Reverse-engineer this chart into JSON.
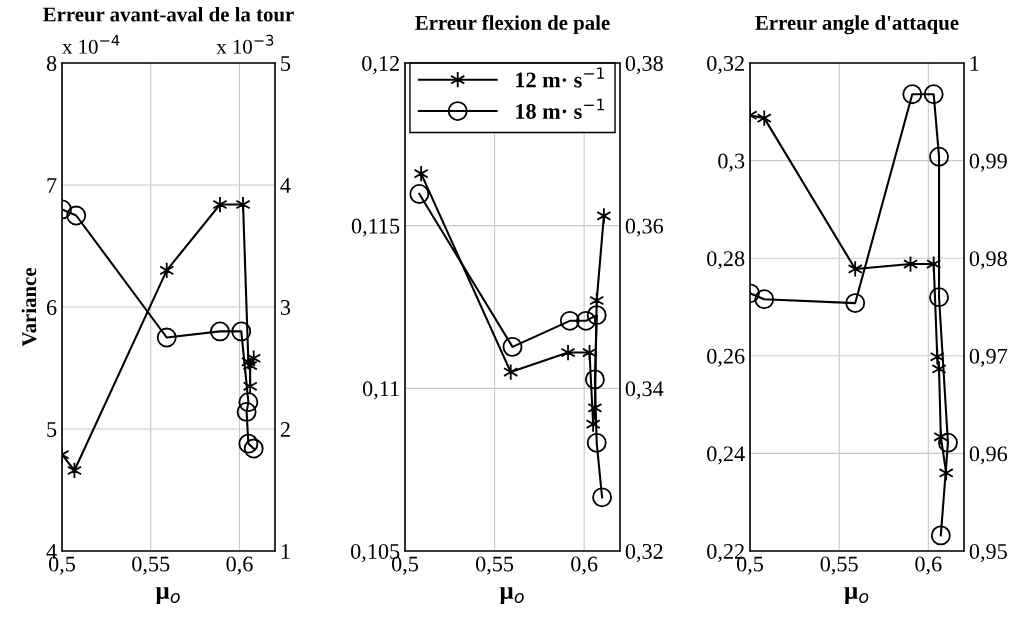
{
  "chart_data": [
    {
      "type": "line",
      "title": "Erreur avant-aval de la tour",
      "xlabel": "μ$_{o}$",
      "ylabel": "Variance",
      "annotations": [
        "x 10$^{−4}$",
        "x 10$^{−3}$"
      ],
      "xlim": [
        0.5,
        0.62
      ],
      "xticks": [
        {
          "value": 0.5,
          "label": "0,5"
        },
        {
          "value": 0.55,
          "label": "0,55"
        },
        {
          "value": 0.6,
          "label": "0,6"
        }
      ],
      "ylim": [
        4,
        8
      ],
      "yticks": [
        4,
        5,
        6,
        7,
        8
      ],
      "y2lim": [
        1,
        5
      ],
      "y2ticks": [
        1,
        2,
        3,
        4,
        5
      ],
      "grid": true,
      "series": [
        {
          "color": "#000000",
          "marker": "cross",
          "x": [
            0.5,
            0.507,
            0.559,
            0.589,
            0.602,
            0.605,
            0.608,
            0.606,
            0.606
          ],
          "values": [
            4.79,
            4.66,
            6.3,
            6.84,
            6.84,
            5.55,
            5.58,
            5.52,
            5.35
          ]
        },
        {
          "color": "#000000",
          "marker": "circle",
          "axis": "y2",
          "x": [
            0.5,
            0.508,
            0.559,
            0.589,
            0.601,
            0.605,
            0.604,
            0.605,
            0.608
          ],
          "values": [
            3.8,
            3.75,
            2.75,
            2.8,
            2.8,
            2.22,
            2.14,
            1.88,
            1.84
          ]
        }
      ]
    },
    {
      "type": "line",
      "title": "Erreur flexion de pale",
      "xlabel": "μ$_{o}$",
      "legend": "top",
      "xlim": [
        0.5,
        0.62
      ],
      "xticks": [
        {
          "value": 0.5,
          "label": "0,5"
        },
        {
          "value": 0.55,
          "label": "0,55"
        },
        {
          "value": 0.6,
          "label": "0,6"
        }
      ],
      "ylim": [
        0.105,
        0.12
      ],
      "yticks": [
        {
          "value": 0.105,
          "label": "0,105"
        },
        {
          "value": 0.11,
          "label": "0,11"
        },
        {
          "value": 0.115,
          "label": "0,115"
        },
        {
          "value": 0.12,
          "label": "0,12"
        }
      ],
      "y2lim": [
        0.32,
        0.38
      ],
      "y2ticks": [
        {
          "value": 0.32,
          "label": "0,32"
        },
        {
          "value": 0.34,
          "label": "0,34"
        },
        {
          "value": 0.36,
          "label": "0,36"
        },
        {
          "value": 0.38,
          "label": "0,38"
        }
      ],
      "grid": true,
      "series": [
        {
          "name": "12 m· s$^{−1}$",
          "color": "#000000",
          "marker": "cross",
          "x": [
            0.509,
            0.559,
            0.591,
            0.603,
            0.605,
            0.606,
            0.607,
            0.611
          ],
          "values": [
            0.1166,
            0.1105,
            0.1111,
            0.1111,
            0.1089,
            0.1094,
            0.1127,
            0.1153
          ]
        },
        {
          "name": "18 m· s$^{−1}$",
          "color": "#000000",
          "marker": "circle",
          "axis": "y2",
          "x": [
            0.508,
            0.56,
            0.592,
            0.601,
            0.607,
            0.606,
            0.607,
            0.61
          ],
          "values": [
            0.3639,
            0.3451,
            0.3483,
            0.3483,
            0.349,
            0.3411,
            0.3333,
            0.3266
          ]
        }
      ]
    },
    {
      "type": "line",
      "title": "Erreur angle d'attaque",
      "xlabel": "μ$_{o}$",
      "xlim": [
        0.5,
        0.62
      ],
      "xticks": [
        {
          "value": 0.5,
          "label": "0,5"
        },
        {
          "value": 0.55,
          "label": "0,55"
        },
        {
          "value": 0.6,
          "label": "0,6"
        }
      ],
      "ylim": [
        0.22,
        0.32
      ],
      "yticks": [
        {
          "value": 0.22,
          "label": "0,22"
        },
        {
          "value": 0.24,
          "label": "0,24"
        },
        {
          "value": 0.26,
          "label": "0,26"
        },
        {
          "value": 0.28,
          "label": "0,28"
        },
        {
          "value": 0.3,
          "label": "0,3"
        },
        {
          "value": 0.32,
          "label": "0,32"
        }
      ],
      "y2lim": [
        0.95,
        1
      ],
      "y2ticks": [
        {
          "value": 0.95,
          "label": "0,95"
        },
        {
          "value": 0.96,
          "label": "0,96"
        },
        {
          "value": 0.97,
          "label": "0,97"
        },
        {
          "value": 0.98,
          "label": "0,98"
        },
        {
          "value": 0.99,
          "label": "0,99"
        },
        1
      ],
      "grid": true,
      "series": [
        {
          "color": "#000000",
          "marker": "cross",
          "x": [
            0.5,
            0.508,
            0.559,
            0.59,
            0.603,
            0.605,
            0.606,
            0.607,
            0.61
          ],
          "values": [
            0.3093,
            0.3087,
            0.2778,
            0.2788,
            0.2788,
            0.2598,
            0.2573,
            0.2434,
            0.236
          ]
        },
        {
          "color": "#000000",
          "marker": "circle",
          "axis": "y2",
          "x": [
            0.5,
            0.508,
            0.559,
            0.591,
            0.603,
            0.606,
            0.606,
            0.611,
            0.607
          ],
          "values": [
            0.9764,
            0.9758,
            0.9754,
            0.9968,
            0.9968,
            0.9904,
            0.976,
            0.9611,
            0.9516
          ]
        }
      ]
    }
  ]
}
